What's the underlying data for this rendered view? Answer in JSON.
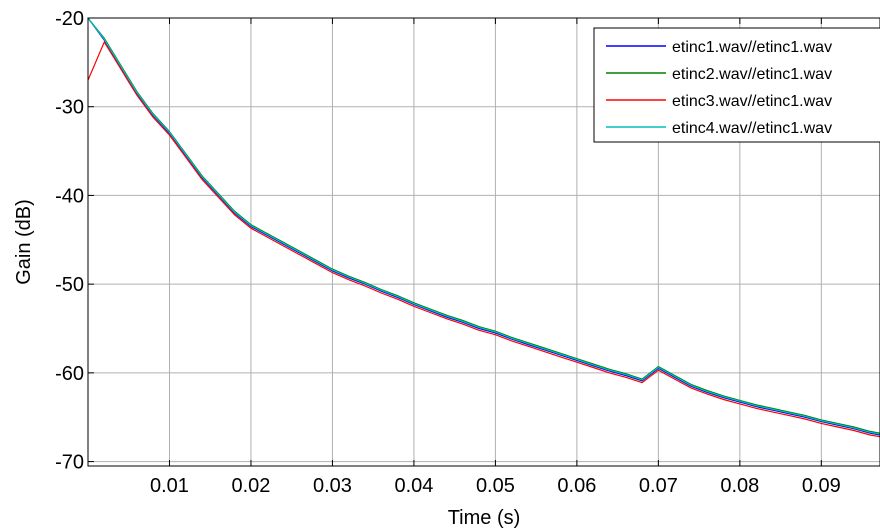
{
  "chart_data": {
    "type": "line",
    "title": "",
    "xlabel": "Time (s)",
    "ylabel": "Gain (dB)",
    "xlim": [
      0,
      0.0972
    ],
    "ylim": [
      -70.5,
      -20
    ],
    "grid": true,
    "x_ticks": [
      0.01,
      0.02,
      0.03,
      0.04,
      0.05,
      0.06,
      0.07,
      0.08,
      0.09
    ],
    "x_tick_labels": [
      "0.01",
      "0.02",
      "0.03",
      "0.04",
      "0.05",
      "0.06",
      "0.07",
      "0.08",
      "0.09"
    ],
    "y_ticks": [
      -20,
      -30,
      -40,
      -50,
      -60,
      -70
    ],
    "y_tick_labels": [
      "-20",
      "-30",
      "-40",
      "-50",
      "-60",
      "-70"
    ],
    "legend_position": "top-right",
    "series": [
      {
        "name": "etinc1.wav//etinc1.wav",
        "color": "#0000ff",
        "x": [
          0,
          0.002,
          0.004,
          0.006,
          0.008,
          0.01,
          0.012,
          0.014,
          0.016,
          0.018,
          0.02,
          0.022,
          0.024,
          0.026,
          0.028,
          0.03,
          0.032,
          0.034,
          0.036,
          0.038,
          0.04,
          0.042,
          0.044,
          0.046,
          0.048,
          0.05,
          0.052,
          0.054,
          0.056,
          0.058,
          0.06,
          0.062,
          0.064,
          0.066,
          0.068,
          0.07,
          0.072,
          0.074,
          0.076,
          0.078,
          0.08,
          0.082,
          0.084,
          0.086,
          0.088,
          0.09,
          0.092,
          0.094,
          0.096,
          0.0972
        ],
        "y": [
          -20,
          -22.5,
          -25.5,
          -28.5,
          -31,
          -33,
          -35.5,
          -38,
          -40,
          -42,
          -43.5,
          -44.5,
          -45.5,
          -46.5,
          -47.5,
          -48.5,
          -49.3,
          -50,
          -50.8,
          -51.5,
          -52.3,
          -53,
          -53.7,
          -54.3,
          -55,
          -55.5,
          -56.2,
          -56.8,
          -57.4,
          -58,
          -58.6,
          -59.2,
          -59.8,
          -60.3,
          -60.9,
          -59.5,
          -60.5,
          -61.5,
          -62.2,
          -62.8,
          -63.3,
          -63.8,
          -64.2,
          -64.6,
          -65,
          -65.5,
          -65.9,
          -66.3,
          -66.8,
          -67
        ]
      },
      {
        "name": "etinc2.wav//etinc1.wav",
        "color": "#008000",
        "x": [
          0,
          0.002,
          0.004,
          0.006,
          0.008,
          0.01,
          0.012,
          0.014,
          0.016,
          0.018,
          0.02,
          0.022,
          0.024,
          0.026,
          0.028,
          0.03,
          0.032,
          0.034,
          0.036,
          0.038,
          0.04,
          0.042,
          0.044,
          0.046,
          0.048,
          0.05,
          0.052,
          0.054,
          0.056,
          0.058,
          0.06,
          0.062,
          0.064,
          0.066,
          0.068,
          0.07,
          0.072,
          0.074,
          0.076,
          0.078,
          0.08,
          0.082,
          0.084,
          0.086,
          0.088,
          0.09,
          0.092,
          0.094,
          0.096,
          0.0972
        ],
        "y": [
          -20,
          -22.3,
          -25.3,
          -28.3,
          -30.8,
          -32.8,
          -35.3,
          -37.8,
          -39.8,
          -41.8,
          -43.3,
          -44.3,
          -45.3,
          -46.3,
          -47.3,
          -48.3,
          -49.1,
          -49.8,
          -50.6,
          -51.3,
          -52.1,
          -52.8,
          -53.5,
          -54.1,
          -54.8,
          -55.3,
          -56,
          -56.6,
          -57.2,
          -57.8,
          -58.4,
          -59,
          -59.6,
          -60.1,
          -60.7,
          -59.3,
          -60.3,
          -61.3,
          -62,
          -62.6,
          -63.1,
          -63.6,
          -64,
          -64.4,
          -64.8,
          -65.3,
          -65.7,
          -66.1,
          -66.6,
          -66.8
        ]
      },
      {
        "name": "etinc3.wav//etinc1.wav",
        "color": "#ff0000",
        "x": [
          0,
          0.002,
          0.004,
          0.006,
          0.008,
          0.01,
          0.012,
          0.014,
          0.016,
          0.018,
          0.02,
          0.022,
          0.024,
          0.026,
          0.028,
          0.03,
          0.032,
          0.034,
          0.036,
          0.038,
          0.04,
          0.042,
          0.044,
          0.046,
          0.048,
          0.05,
          0.052,
          0.054,
          0.056,
          0.058,
          0.06,
          0.062,
          0.064,
          0.066,
          0.068,
          0.07,
          0.072,
          0.074,
          0.076,
          0.078,
          0.08,
          0.082,
          0.084,
          0.086,
          0.088,
          0.09,
          0.092,
          0.094,
          0.096,
          0.0972
        ],
        "y": [
          -27,
          -22.7,
          -25.7,
          -28.7,
          -31.2,
          -33.2,
          -35.7,
          -38.2,
          -40.2,
          -42.2,
          -43.7,
          -44.7,
          -45.7,
          -46.7,
          -47.7,
          -48.7,
          -49.5,
          -50.2,
          -51,
          -51.7,
          -52.5,
          -53.2,
          -53.9,
          -54.5,
          -55.2,
          -55.7,
          -56.4,
          -57,
          -57.6,
          -58.2,
          -58.8,
          -59.4,
          -60,
          -60.5,
          -61.1,
          -59.7,
          -60.7,
          -61.7,
          -62.4,
          -63,
          -63.5,
          -64,
          -64.4,
          -64.8,
          -65.2,
          -65.7,
          -66.1,
          -66.5,
          -67,
          -67.2
        ]
      },
      {
        "name": "etinc4.wav//etinc1.wav",
        "color": "#00bfbf",
        "x": [
          0,
          0.002,
          0.004,
          0.006,
          0.008,
          0.01,
          0.012,
          0.014,
          0.016,
          0.018,
          0.02,
          0.022,
          0.024,
          0.026,
          0.028,
          0.03,
          0.032,
          0.034,
          0.036,
          0.038,
          0.04,
          0.042,
          0.044,
          0.046,
          0.048,
          0.05,
          0.052,
          0.054,
          0.056,
          0.058,
          0.06,
          0.062,
          0.064,
          0.066,
          0.068,
          0.07,
          0.072,
          0.074,
          0.076,
          0.078,
          0.08,
          0.082,
          0.084,
          0.086,
          0.088,
          0.09,
          0.092,
          0.094,
          0.096,
          0.0972
        ],
        "y": [
          -20,
          -22.4,
          -25.4,
          -28.4,
          -30.9,
          -32.9,
          -35.4,
          -37.9,
          -39.9,
          -41.9,
          -43.4,
          -44.4,
          -45.4,
          -46.4,
          -47.4,
          -48.4,
          -49.2,
          -49.9,
          -50.7,
          -51.4,
          -52.2,
          -52.9,
          -53.6,
          -54.2,
          -54.9,
          -55.4,
          -56.1,
          -56.7,
          -57.3,
          -57.9,
          -58.5,
          -59.1,
          -59.7,
          -60.2,
          -60.8,
          -59.4,
          -60.4,
          -61.4,
          -62.1,
          -62.7,
          -63.2,
          -63.7,
          -64.1,
          -64.5,
          -64.9,
          -65.4,
          -65.8,
          -66.2,
          -66.7,
          -66.9
        ]
      }
    ]
  }
}
